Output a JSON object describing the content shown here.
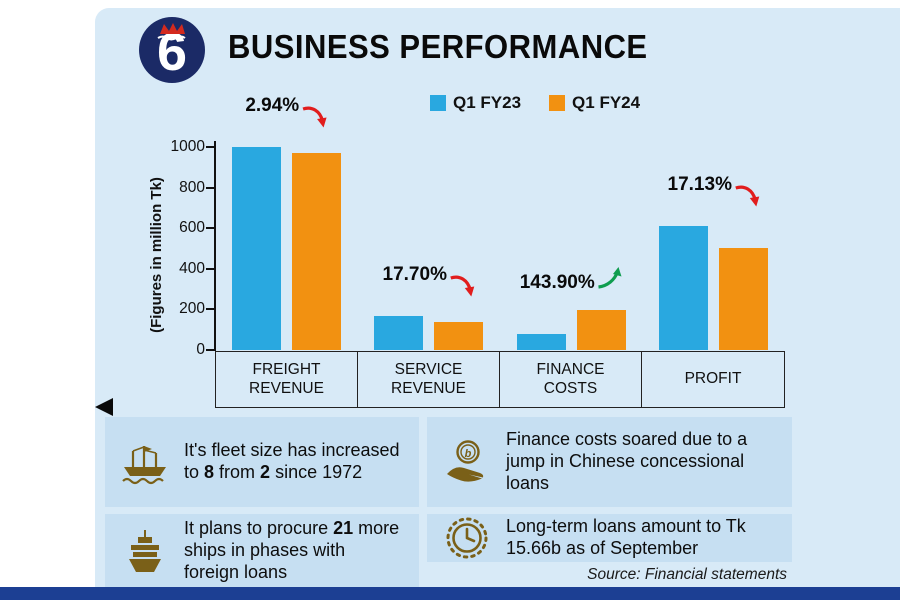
{
  "header": {
    "title": "BUSINESS PERFORMANCE",
    "logo_text": "6"
  },
  "legend": {
    "items": [
      {
        "label": "Q1 FY23",
        "color": "#29a8e0"
      },
      {
        "label": "Q1 FY24",
        "color": "#f29111"
      }
    ]
  },
  "chart_data": {
    "type": "bar",
    "title": "BUSINESS PERFORMANCE",
    "ylabel": "(Figures in million Tk)",
    "categories": [
      "FREIGHT REVENUE",
      "SERVICE REVENUE",
      "FINANCE COSTS",
      "PROFIT"
    ],
    "series": [
      {
        "name": "Q1 FY23",
        "color": "#29a8e0",
        "values": [
          1000,
          170,
          80,
          610
        ]
      },
      {
        "name": "Q1 FY24",
        "color": "#f29111",
        "values": [
          970,
          140,
          195,
          505
        ]
      }
    ],
    "change_labels": [
      {
        "text": "2.94%",
        "direction": "down"
      },
      {
        "text": "17.70%",
        "direction": "down"
      },
      {
        "text": "143.90%",
        "direction": "up"
      },
      {
        "text": "17.13%",
        "direction": "down"
      }
    ],
    "yticks": [
      0,
      200,
      400,
      600,
      800,
      1000
    ],
    "ylim": [
      0,
      1000
    ],
    "grid": false,
    "legend_position": "top"
  },
  "info_boxes": [
    {
      "icon": "cargo-ship-icon",
      "segments": [
        {
          "text": "It's fleet size has increased to ",
          "bold": false
        },
        {
          "text": "8",
          "bold": true
        },
        {
          "text": " from ",
          "bold": false
        },
        {
          "text": "2",
          "bold": true
        },
        {
          "text": " since 1972",
          "bold": false
        }
      ]
    },
    {
      "icon": "coin-hand-icon",
      "segments": [
        {
          "text": "Finance costs soared due to a jump in Chinese concessional loans",
          "bold": false
        }
      ]
    },
    {
      "icon": "ship-bow-icon",
      "segments": [
        {
          "text": "It plans to procure ",
          "bold": false
        },
        {
          "text": "21",
          "bold": true
        },
        {
          "text": " more ships in phases with foreign loans",
          "bold": false
        }
      ]
    },
    {
      "icon": "clock-icon",
      "segments": [
        {
          "text": "Long-term loans amount to Tk 15.66b as of September",
          "bold": false
        }
      ]
    }
  ],
  "source": "Source: Financial statements",
  "colors": {
    "panel_bg": "#d8eaf7",
    "box_bg": "#c6dff2",
    "bar_fy23": "#29a8e0",
    "bar_fy24": "#f29111",
    "navy": "#1c3f93",
    "gold": "#7a6018",
    "red": "#e11d1d",
    "green": "#0f9d4f"
  }
}
